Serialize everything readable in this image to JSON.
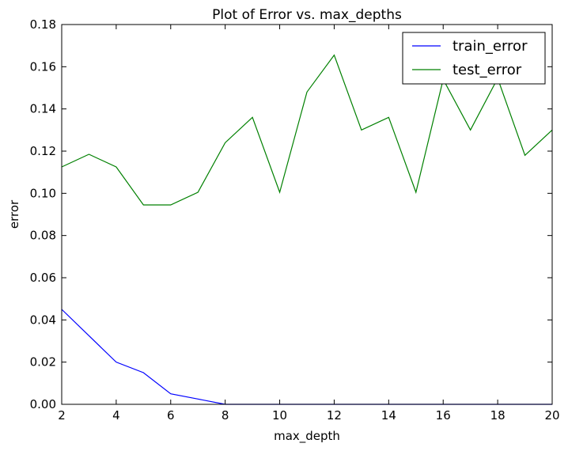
{
  "chart_data": {
    "type": "line",
    "title": "Plot of Error vs. max_depths",
    "xlabel": "max_depth",
    "ylabel": "error",
    "xlim": [
      2,
      20
    ],
    "ylim": [
      0,
      0.18
    ],
    "xticks": [
      2,
      4,
      6,
      8,
      10,
      12,
      14,
      16,
      18,
      20
    ],
    "xtick_labels": [
      "2",
      "4",
      "6",
      "8",
      "10",
      "12",
      "14",
      "16",
      "18",
      "20"
    ],
    "yticks": [
      0,
      0.02,
      0.04,
      0.06,
      0.08,
      0.1,
      0.12,
      0.14,
      0.16,
      0.18
    ],
    "ytick_labels": [
      "0.00",
      "0.02",
      "0.04",
      "0.06",
      "0.08",
      "0.10",
      "0.12",
      "0.14",
      "0.16",
      "0.18"
    ],
    "grid": false,
    "legend_position": "top-right",
    "x": [
      2,
      3,
      4,
      5,
      6,
      7,
      8,
      9,
      10,
      11,
      12,
      13,
      14,
      15,
      16,
      17,
      18,
      19,
      20
    ],
    "series": [
      {
        "name": "train_error",
        "color": "#0000ff",
        "values": [
          0.045,
          0.0325,
          0.02,
          0.015,
          0.005,
          0.0025,
          0.0,
          0.0,
          0.0,
          0.0,
          0.0,
          0.0,
          0.0,
          0.0,
          0.0,
          0.0,
          0.0,
          0.0,
          0.0
        ]
      },
      {
        "name": "test_error",
        "color": "#008000",
        "values": [
          0.1125,
          0.1185,
          0.1125,
          0.0945,
          0.0945,
          0.1005,
          0.124,
          0.136,
          0.1005,
          0.148,
          0.1655,
          0.13,
          0.136,
          0.1005,
          0.154,
          0.13,
          0.1545,
          0.118,
          0.13
        ]
      }
    ]
  }
}
